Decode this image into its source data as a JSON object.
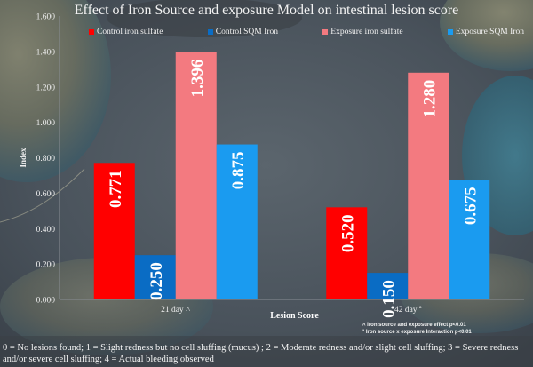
{
  "chart_data": {
    "type": "bar",
    "title": "Effect of Iron Source and exposure Model on intestinal lesion score",
    "xlabel": "Lesion Score",
    "ylabel": "Index",
    "ylim": [
      0,
      1.6
    ],
    "yticks": [
      "0.000",
      "0.200",
      "0.400",
      "0.600",
      "0.800",
      "1.000",
      "1.200",
      "1.400",
      "1.600"
    ],
    "categories": [
      "21 day ˄",
      "42 day ª"
    ],
    "legend_position": "top",
    "grid": false,
    "series": [
      {
        "name": "Control iron sulfate",
        "color": "#ff0000",
        "values": [
          0.771,
          0.52
        ],
        "labels": [
          "0.771",
          "0.520"
        ]
      },
      {
        "name": "Control SQM Iron",
        "color": "#0a6cc4",
        "values": [
          0.25,
          0.15
        ],
        "labels": [
          "0.250",
          "0.150"
        ]
      },
      {
        "name": "Exposure iron sulfate",
        "color": "#f37a80",
        "values": [
          1.396,
          1.28
        ],
        "labels": [
          "1.396",
          "1.280"
        ]
      },
      {
        "name": "Exposure SQM Iron",
        "color": "#1a9bf0",
        "values": [
          0.875,
          0.675
        ],
        "labels": [
          "0.875",
          "0.675"
        ]
      }
    ],
    "annotations": [
      "˄ Iron source and exposure effect p<0.01",
      "ª Iron source x exposure Interaction p<0.01"
    ]
  },
  "footnote": "0 = No lesions found; 1 = Slight redness but no cell sluffing (mucus) ; 2 = Moderate redness and/or slight cell sluffing; 3 = Severe redness and/or severe cell sluffing; 4 = Actual bleeding observed"
}
